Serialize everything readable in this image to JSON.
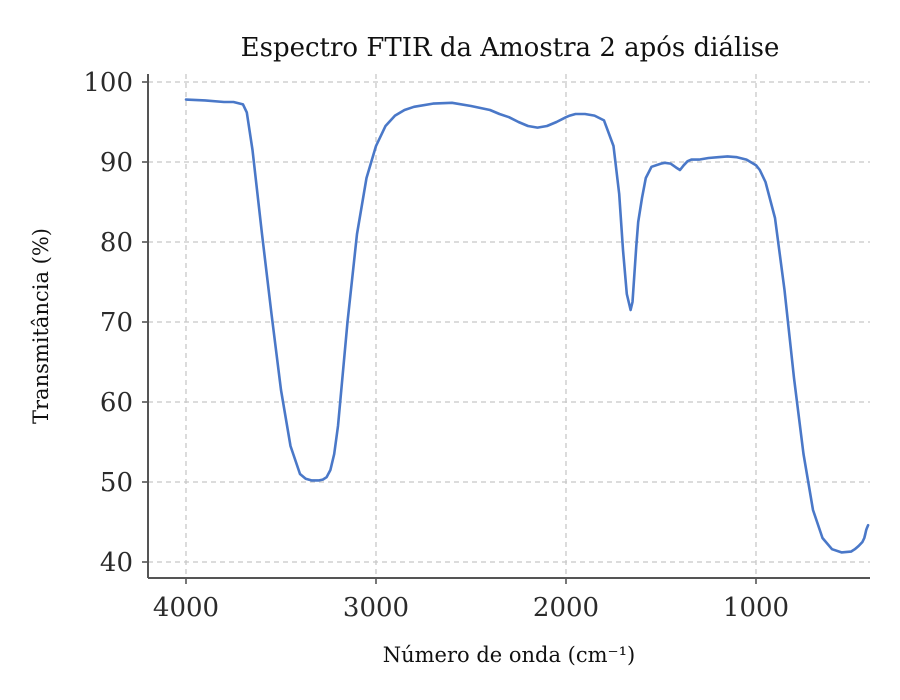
{
  "chart_data": {
    "type": "line",
    "title": "Espectro FTIR da Amostra 2 após diálise",
    "xlabel": "Número de onda (cm⁻¹)",
    "ylabel": "Transmitância (%)",
    "xlim": [
      4200,
      400
    ],
    "ylim": [
      38,
      101
    ],
    "x_ticks": [
      4000,
      3000,
      2000,
      1000
    ],
    "y_ticks": [
      40,
      50,
      60,
      70,
      80,
      90,
      100
    ],
    "grid": true,
    "series": [
      {
        "color": "#4a78c8",
        "x": [
          4000,
          3900,
          3800,
          3750,
          3700,
          3680,
          3650,
          3600,
          3550,
          3500,
          3450,
          3400,
          3370,
          3340,
          3320,
          3300,
          3280,
          3260,
          3240,
          3220,
          3200,
          3150,
          3100,
          3050,
          3000,
          2950,
          2900,
          2850,
          2800,
          2700,
          2600,
          2500,
          2400,
          2350,
          2300,
          2250,
          2200,
          2150,
          2100,
          2050,
          2000,
          1980,
          1950,
          1900,
          1850,
          1800,
          1750,
          1720,
          1700,
          1680,
          1660,
          1650,
          1640,
          1630,
          1620,
          1600,
          1580,
          1550,
          1500,
          1480,
          1450,
          1420,
          1400,
          1380,
          1360,
          1340,
          1300,
          1250,
          1200,
          1150,
          1100,
          1050,
          1000,
          980,
          950,
          900,
          850,
          800,
          750,
          700,
          650,
          600,
          550,
          500,
          480,
          460,
          440,
          430,
          425,
          420,
          415,
          410
        ],
        "y": [
          97.8,
          97.7,
          97.5,
          97.5,
          97.2,
          96.2,
          91.5,
          81.0,
          71.0,
          61.5,
          54.5,
          51.0,
          50.4,
          50.2,
          50.2,
          50.2,
          50.3,
          50.6,
          51.5,
          53.5,
          57.0,
          70.0,
          81.0,
          88.0,
          92.0,
          94.5,
          95.8,
          96.5,
          96.9,
          97.3,
          97.4,
          97.0,
          96.5,
          96.0,
          95.6,
          95.0,
          94.5,
          94.3,
          94.5,
          95.0,
          95.6,
          95.8,
          96.0,
          96.0,
          95.8,
          95.2,
          92.0,
          86.0,
          79.0,
          73.5,
          71.5,
          72.5,
          76.0,
          79.5,
          82.5,
          85.5,
          88.0,
          89.4,
          89.8,
          89.9,
          89.8,
          89.3,
          89.0,
          89.6,
          90.1,
          90.3,
          90.3,
          90.5,
          90.6,
          90.7,
          90.6,
          90.3,
          89.6,
          89.0,
          87.5,
          83.0,
          74.0,
          63.0,
          53.5,
          46.5,
          43.0,
          41.6,
          41.2,
          41.3,
          41.6,
          42.0,
          42.5,
          43.0,
          43.5,
          44.0,
          44.3,
          44.6
        ]
      }
    ]
  }
}
